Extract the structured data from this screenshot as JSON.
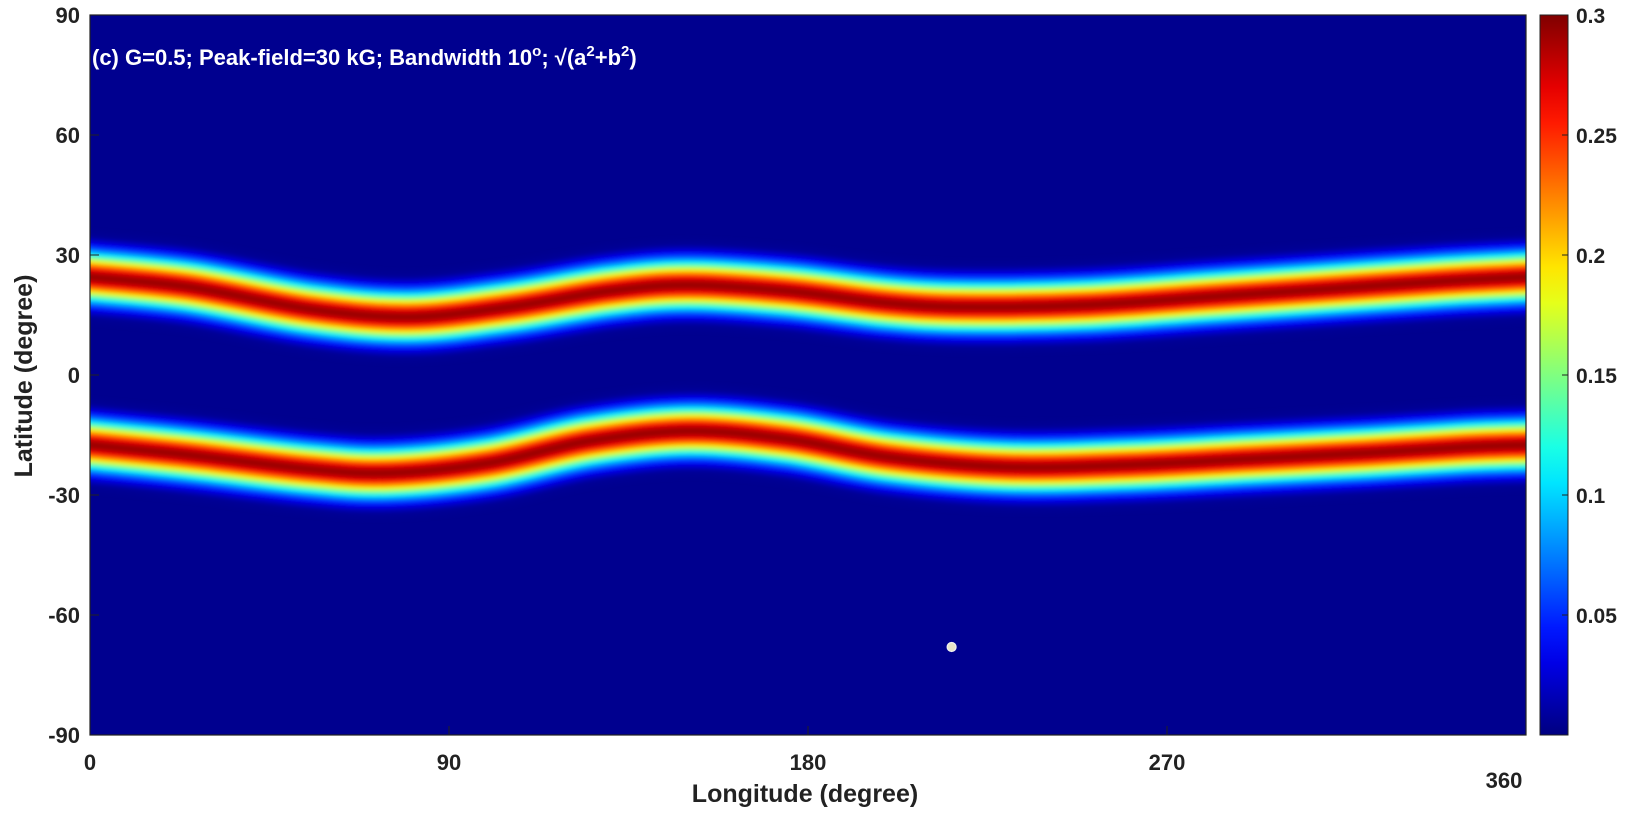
{
  "chart_data": {
    "type": "heatmap",
    "title": "(c) G=0.5; Peak-field=30 kG; Bandwidth 10",
    "title_degree_sup": "o",
    "title_mid": "; √(a",
    "title_sup_a": "2",
    "title_plus_b": "+b",
    "title_sup_b": "2",
    "title_close": ")",
    "xlabel": "Longitude (degree)",
    "ylabel": "Latitude (degree)",
    "xlim": [
      0,
      360
    ],
    "ylim": [
      -90,
      90
    ],
    "x_ticks": [
      {
        "value": 0,
        "label": "0"
      },
      {
        "value": 90,
        "label": "90"
      },
      {
        "value": 180,
        "label": "180"
      },
      {
        "value": 270,
        "label": "270"
      },
      {
        "value": 360,
        "label": "360"
      }
    ],
    "y_ticks": [
      {
        "value": 90,
        "label": "90"
      },
      {
        "value": 60,
        "label": "60"
      },
      {
        "value": 30,
        "label": "30"
      },
      {
        "value": 0,
        "label": "0"
      },
      {
        "value": -30,
        "label": "-30"
      },
      {
        "value": -60,
        "label": "-60"
      },
      {
        "value": -90,
        "label": "-90"
      }
    ],
    "colorbar": {
      "colormap": "jet",
      "range": [
        0,
        0.3
      ],
      "ticks": [
        {
          "value": 0.05,
          "label": "0.05"
        },
        {
          "value": 0.1,
          "label": "0.1"
        },
        {
          "value": 0.15,
          "label": "0.15"
        },
        {
          "value": 0.2,
          "label": "0.2"
        },
        {
          "value": 0.25,
          "label": "0.25"
        },
        {
          "value": 0.3,
          "label": "0.3"
        }
      ]
    },
    "peak_value": 0.3,
    "band_halfwidth_deg": 6.5,
    "bands": [
      {
        "name": "northern band",
        "centerline": [
          [
            0,
            24.5
          ],
          [
            25,
            22
          ],
          [
            55,
            16.5
          ],
          [
            80,
            14.5
          ],
          [
            105,
            17
          ],
          [
            130,
            21
          ],
          [
            150,
            22.5
          ],
          [
            175,
            21
          ],
          [
            200,
            18
          ],
          [
            220,
            17
          ],
          [
            250,
            17.5
          ],
          [
            280,
            19.5
          ],
          [
            310,
            21.5
          ],
          [
            340,
            23.5
          ],
          [
            360,
            24.5
          ]
        ]
      },
      {
        "name": "southern band",
        "centerline": [
          [
            0,
            -17.5
          ],
          [
            25,
            -20
          ],
          [
            55,
            -23.5
          ],
          [
            75,
            -24.5
          ],
          [
            100,
            -22
          ],
          [
            125,
            -16.5
          ],
          [
            150,
            -14
          ],
          [
            175,
            -16
          ],
          [
            200,
            -20.5
          ],
          [
            230,
            -23
          ],
          [
            260,
            -22.5
          ],
          [
            290,
            -21
          ],
          [
            320,
            -19.5
          ],
          [
            345,
            -18
          ],
          [
            360,
            -17.5
          ]
        ]
      }
    ],
    "marker": {
      "lon": 216,
      "lat": -68
    }
  },
  "colors": {
    "background": "#00008f",
    "marker_fill": "#e8e4c8",
    "marker_stroke": "#f0f0f0",
    "title_text": "#ffffff",
    "axis_text": "#222222"
  }
}
